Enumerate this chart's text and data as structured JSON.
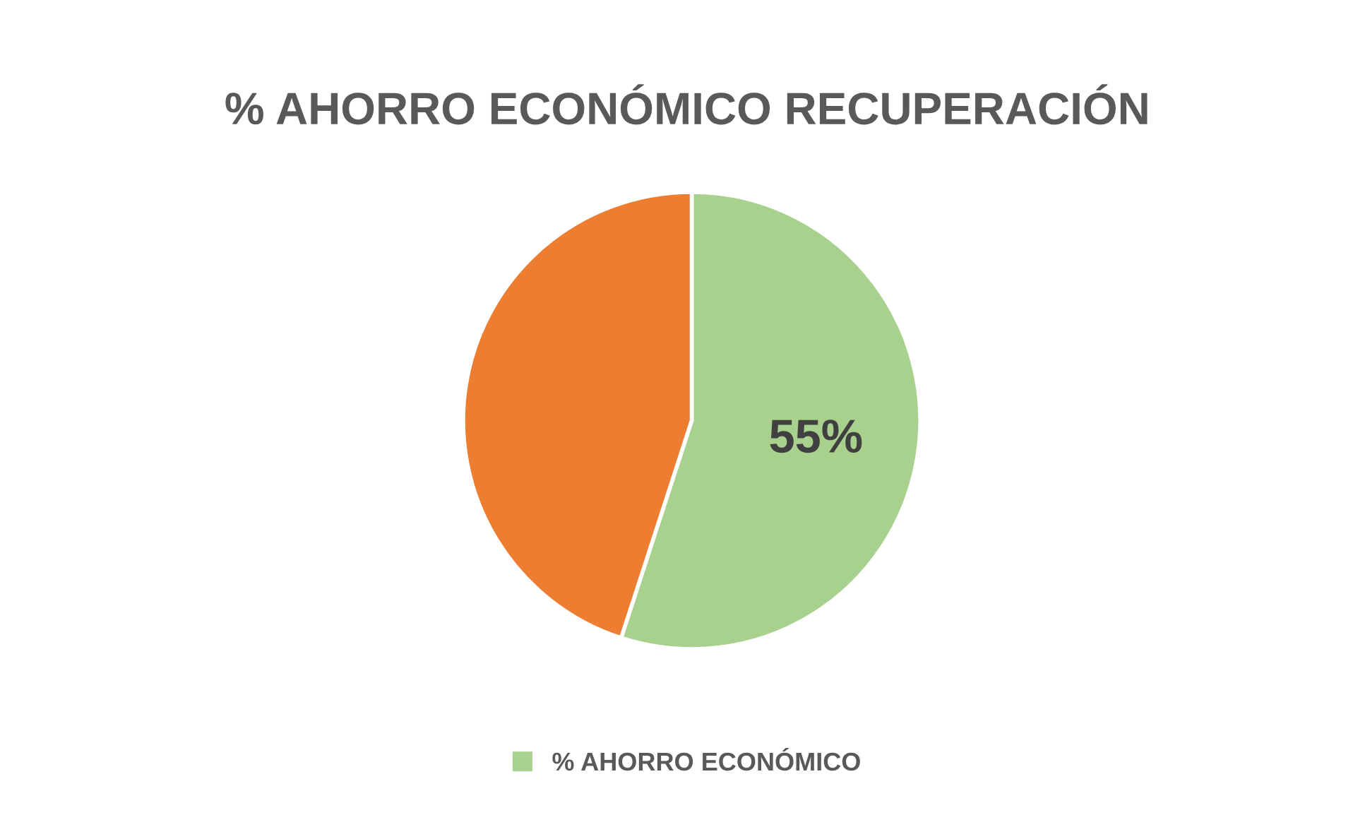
{
  "chart_data": {
    "type": "pie",
    "title": "% AHORRO ECONÓMICO RECUPERACIÓN",
    "categories": [
      "% AHORRO ECONÓMICO",
      null
    ],
    "values": [
      55,
      45
    ],
    "colors": [
      "#a9d18e",
      "#ed7d31"
    ],
    "value_labels": [
      "55%",
      null
    ],
    "legend": "bottom"
  }
}
